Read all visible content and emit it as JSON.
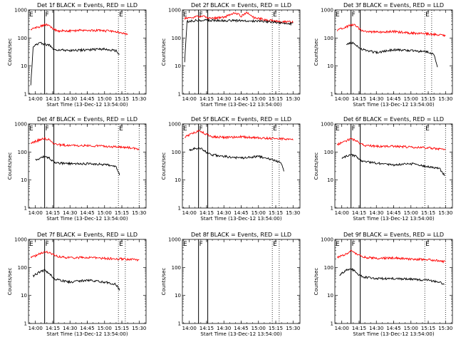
{
  "chart_data": [
    {
      "type": "line",
      "title": "Det 1f BLACK = Events, RED = LLD",
      "xlabel": "Start Time (13-Dec-12 13:54:00)",
      "ylabel": "Counts/sec",
      "yscale": "log",
      "ylim": [
        1,
        1000
      ],
      "xlim": [
        "13:54",
        "15:36"
      ],
      "xticks": [
        "14:00",
        "14:15",
        "14:30",
        "14:45",
        "15:00",
        "15:15",
        "15:30"
      ],
      "yticks": [
        "1",
        "10",
        "100",
        "1000"
      ],
      "markers": [
        {
          "label": "E",
          "time": "13:54"
        },
        {
          "label": "F",
          "time": "14:08"
        },
        {
          "label": "E",
          "time": "15:12"
        }
      ],
      "solid_lines": [
        "14:08",
        "14:16"
      ],
      "dotted_lines": [
        "15:12",
        "15:18"
      ],
      "series": [
        {
          "color": "#ff0000",
          "x": [
            "13:56",
            "14:00",
            "14:05",
            "14:08",
            "14:12",
            "14:16",
            "14:20",
            "14:30",
            "14:45",
            "15:00",
            "15:10",
            "15:15",
            "15:20"
          ],
          "values": [
            200,
            230,
            270,
            300,
            280,
            200,
            180,
            180,
            190,
            180,
            170,
            150,
            140
          ]
        },
        {
          "color": "#000000",
          "x": [
            "13:56",
            "13:58",
            "14:00",
            "14:05",
            "14:08",
            "14:12",
            "14:16",
            "14:20",
            "14:30",
            "14:45",
            "15:00",
            "15:10",
            "15:13"
          ],
          "values": [
            2,
            50,
            60,
            65,
            60,
            55,
            40,
            38,
            35,
            38,
            40,
            35,
            25
          ]
        }
      ]
    },
    {
      "type": "line",
      "title": "Det 2f BLACK = Events, RED = LLD",
      "xlabel": "Start Time (13-Dec-12 13:54:00)",
      "ylabel": "Counts/sec",
      "yscale": "log",
      "ylim": [
        1,
        1000
      ],
      "xlim": [
        "13:54",
        "15:36"
      ],
      "xticks": [
        "14:00",
        "14:15",
        "14:30",
        "14:45",
        "15:00",
        "15:15",
        "15:30"
      ],
      "yticks": [
        "1",
        "10",
        "100",
        "1000"
      ],
      "markers": [
        {
          "label": "E",
          "time": "13:54"
        },
        {
          "label": "F",
          "time": "14:08"
        },
        {
          "label": "E",
          "time": "15:12"
        }
      ],
      "solid_lines": [
        "14:08",
        "14:16"
      ],
      "dotted_lines": [
        "15:12",
        "15:18"
      ],
      "series": [
        {
          "color": "#ff0000",
          "x": [
            "13:56",
            "14:05",
            "14:10",
            "14:20",
            "14:30",
            "14:40",
            "14:45",
            "14:50",
            "14:55",
            "15:00",
            "15:10",
            "15:20",
            "15:30"
          ],
          "values": [
            500,
            560,
            600,
            500,
            550,
            800,
            600,
            800,
            550,
            500,
            420,
            380,
            380
          ]
        },
        {
          "color": "#000000",
          "x": [
            "13:56",
            "13:58",
            "14:00",
            "14:05",
            "14:10",
            "14:20",
            "14:30",
            "14:45",
            "15:00",
            "15:10",
            "15:20",
            "15:30"
          ],
          "values": [
            15,
            380,
            400,
            420,
            430,
            430,
            420,
            420,
            400,
            380,
            340,
            320
          ]
        }
      ]
    },
    {
      "type": "line",
      "title": "Det 3f BLACK = Events, RED = LLD",
      "xlabel": "Start Time (13-Dec-12 13:54:00)",
      "ylabel": "Counts/sec",
      "yscale": "log",
      "ylim": [
        1,
        1000
      ],
      "xlim": [
        "13:54",
        "15:36"
      ],
      "xticks": [
        "14:00",
        "14:15",
        "14:30",
        "14:45",
        "15:00",
        "15:15",
        "15:30"
      ],
      "yticks": [
        "1",
        "10",
        "100",
        "1000"
      ],
      "markers": [
        {
          "label": "E",
          "time": "13:54"
        },
        {
          "label": "F",
          "time": "14:08"
        },
        {
          "label": "E",
          "time": "15:12"
        }
      ],
      "solid_lines": [
        "14:08",
        "14:16"
      ],
      "dotted_lines": [
        "15:12",
        "15:18"
      ],
      "series": [
        {
          "color": "#ff0000",
          "x": [
            "13:56",
            "14:00",
            "14:05",
            "14:08",
            "14:12",
            "14:16",
            "14:20",
            "14:30",
            "14:45",
            "15:00",
            "15:15",
            "15:25",
            "15:30"
          ],
          "values": [
            180,
            220,
            260,
            300,
            280,
            200,
            170,
            160,
            170,
            150,
            140,
            130,
            120
          ]
        },
        {
          "color": "#000000",
          "x": [
            "14:04",
            "14:08",
            "14:12",
            "14:16",
            "14:20",
            "14:30",
            "14:45",
            "15:00",
            "15:15",
            "15:20",
            "15:23"
          ],
          "values": [
            60,
            70,
            60,
            40,
            38,
            30,
            38,
            35,
            32,
            25,
            10
          ]
        }
      ]
    },
    {
      "type": "line",
      "title": "Det 4f BLACK = Events, RED = LLD",
      "xlabel": "Start Time (13-Dec-12 13:54:00)",
      "ylabel": "Counts/sec",
      "yscale": "log",
      "ylim": [
        1,
        1000
      ],
      "xlim": [
        "13:54",
        "15:36"
      ],
      "xticks": [
        "14:00",
        "14:15",
        "14:30",
        "14:45",
        "15:00",
        "15:15",
        "15:30"
      ],
      "yticks": [
        "1",
        "10",
        "100",
        "1000"
      ],
      "markers": [
        {
          "label": "E",
          "time": "13:54"
        },
        {
          "label": "F",
          "time": "14:08"
        },
        {
          "label": "E",
          "time": "15:12"
        }
      ],
      "solid_lines": [
        "14:08",
        "14:16"
      ],
      "dotted_lines": [
        "15:12",
        "15:30"
      ],
      "series": [
        {
          "color": "#ff0000",
          "x": [
            "13:56",
            "14:00",
            "14:05",
            "14:08",
            "14:12",
            "14:16",
            "14:20",
            "14:30",
            "14:45",
            "15:00",
            "15:15",
            "15:25",
            "15:30"
          ],
          "values": [
            200,
            240,
            280,
            300,
            270,
            200,
            180,
            170,
            170,
            160,
            150,
            140,
            120
          ]
        },
        {
          "color": "#000000",
          "x": [
            "14:00",
            "14:04",
            "14:08",
            "14:12",
            "14:16",
            "14:20",
            "14:30",
            "14:45",
            "15:00",
            "15:10",
            "15:13"
          ],
          "values": [
            50,
            60,
            70,
            60,
            45,
            40,
            38,
            38,
            36,
            30,
            15
          ]
        }
      ]
    },
    {
      "type": "line",
      "title": "Det 5f BLACK = Events, RED = LLD",
      "xlabel": "Start Time (13-Dec-12 13:54:00)",
      "ylabel": "Counts/sec",
      "yscale": "log",
      "ylim": [
        1,
        1000
      ],
      "xlim": [
        "13:54",
        "15:36"
      ],
      "xticks": [
        "14:00",
        "14:15",
        "14:30",
        "14:45",
        "15:00",
        "15:15",
        "15:30"
      ],
      "yticks": [
        "1",
        "10",
        "100",
        "1000"
      ],
      "markers": [
        {
          "label": "E",
          "time": "13:54"
        },
        {
          "label": "F",
          "time": "14:08"
        },
        {
          "label": "E",
          "time": "15:12"
        }
      ],
      "solid_lines": [
        "14:08",
        "14:16"
      ],
      "dotted_lines": [
        "15:12",
        "15:18"
      ],
      "series": [
        {
          "color": "#ff0000",
          "x": [
            "13:56",
            "14:00",
            "14:05",
            "14:08",
            "14:12",
            "14:16",
            "14:20",
            "14:30",
            "14:45",
            "15:00",
            "15:15",
            "15:30"
          ],
          "values": [
            350,
            400,
            500,
            600,
            500,
            400,
            350,
            330,
            350,
            320,
            300,
            280
          ]
        },
        {
          "color": "#000000",
          "x": [
            "14:00",
            "14:04",
            "14:08",
            "14:12",
            "14:16",
            "14:20",
            "14:30",
            "14:45",
            "15:00",
            "15:15",
            "15:20",
            "15:22"
          ],
          "values": [
            120,
            130,
            140,
            120,
            90,
            80,
            70,
            60,
            70,
            50,
            40,
            20
          ]
        }
      ]
    },
    {
      "type": "line",
      "title": "Det 6f BLACK = Events, RED = LLD",
      "xlabel": "Start Time (13-Dec-12 13:54:00)",
      "ylabel": "Counts/sec",
      "yscale": "log",
      "ylim": [
        1,
        1000
      ],
      "xlim": [
        "13:54",
        "15:36"
      ],
      "xticks": [
        "14:00",
        "14:15",
        "14:30",
        "14:45",
        "15:00",
        "15:15",
        "15:30"
      ],
      "yticks": [
        "1",
        "10",
        "100",
        "1000"
      ],
      "markers": [
        {
          "label": "E",
          "time": "13:54"
        },
        {
          "label": "F",
          "time": "14:08"
        },
        {
          "label": "E",
          "time": "15:12"
        }
      ],
      "solid_lines": [
        "14:08",
        "14:16"
      ],
      "dotted_lines": [
        "15:12",
        "15:30"
      ],
      "series": [
        {
          "color": "#ff0000",
          "x": [
            "13:56",
            "14:00",
            "14:05",
            "14:08",
            "14:12",
            "14:16",
            "14:20",
            "14:30",
            "14:45",
            "15:00",
            "15:15",
            "15:25",
            "15:30"
          ],
          "values": [
            180,
            220,
            260,
            300,
            260,
            200,
            170,
            160,
            160,
            150,
            140,
            130,
            120
          ]
        },
        {
          "color": "#000000",
          "x": [
            "14:00",
            "14:04",
            "14:08",
            "14:12",
            "14:16",
            "14:20",
            "14:30",
            "14:45",
            "15:00",
            "15:15",
            "15:25",
            "15:29"
          ],
          "values": [
            60,
            70,
            80,
            70,
            50,
            45,
            40,
            35,
            38,
            30,
            25,
            15
          ]
        }
      ]
    },
    {
      "type": "line",
      "title": "Det 7f BLACK = Events, RED = LLD",
      "xlabel": "Start Time (13-Dec-12 13:54:00)",
      "ylabel": "Counts/sec",
      "yscale": "log",
      "ylim": [
        1,
        1000
      ],
      "xlim": [
        "13:54",
        "15:36"
      ],
      "xticks": [
        "14:00",
        "14:15",
        "14:30",
        "14:45",
        "15:00",
        "15:15",
        "15:30"
      ],
      "yticks": [
        "1",
        "10",
        "100",
        "1000"
      ],
      "markers": [
        {
          "label": "E",
          "time": "13:54"
        },
        {
          "label": "F",
          "time": "14:08"
        },
        {
          "label": "E",
          "time": "15:12"
        }
      ],
      "solid_lines": [
        "14:08",
        "14:16"
      ],
      "dotted_lines": [
        "15:12",
        "15:18"
      ],
      "series": [
        {
          "color": "#ff0000",
          "x": [
            "13:56",
            "14:00",
            "14:05",
            "14:08",
            "14:12",
            "14:16",
            "14:20",
            "14:30",
            "14:45",
            "15:00",
            "15:15",
            "15:25",
            "15:30"
          ],
          "values": [
            220,
            260,
            320,
            380,
            330,
            280,
            240,
            220,
            230,
            210,
            200,
            190,
            180
          ]
        },
        {
          "color": "#000000",
          "x": [
            "13:58",
            "14:00",
            "14:04",
            "14:08",
            "14:12",
            "14:16",
            "14:20",
            "14:30",
            "14:45",
            "15:00",
            "15:10",
            "15:13"
          ],
          "values": [
            50,
            55,
            70,
            80,
            60,
            40,
            35,
            30,
            35,
            30,
            25,
            15
          ]
        }
      ]
    },
    {
      "type": "line",
      "title": "Det 8f BLACK = Events, RED = LLD",
      "xlabel": "Start Time (13-Dec-12 13:54:00)",
      "ylabel": "Counts/sec",
      "yscale": "log",
      "ylim": [
        1,
        1000
      ],
      "xlim": [
        "13:54",
        "15:36"
      ],
      "xticks": [
        "14:00",
        "14:15",
        "14:30",
        "14:45",
        "15:00",
        "15:15",
        "15:30"
      ],
      "yticks": [
        "1",
        "10",
        "100",
        "1000"
      ],
      "markers": [
        {
          "label": "E",
          "time": "13:54"
        },
        {
          "label": "F",
          "time": "14:08"
        },
        {
          "label": "E",
          "time": "15:12"
        }
      ],
      "solid_lines": [
        "14:08",
        "14:16"
      ],
      "dotted_lines": [
        "15:12",
        "15:18"
      ],
      "series": []
    },
    {
      "type": "line",
      "title": "Det 9f BLACK = Events, RED = LLD",
      "xlabel": "Start Time (13-Dec-12 13:54:00)",
      "ylabel": "Counts/sec",
      "yscale": "log",
      "ylim": [
        1,
        1000
      ],
      "xlim": [
        "13:54",
        "15:36"
      ],
      "xticks": [
        "14:00",
        "14:15",
        "14:30",
        "14:45",
        "15:00",
        "15:15",
        "15:30"
      ],
      "yticks": [
        "1",
        "10",
        "100",
        "1000"
      ],
      "markers": [
        {
          "label": "E",
          "time": "13:54"
        },
        {
          "label": "F",
          "time": "14:08"
        },
        {
          "label": "E",
          "time": "15:12"
        }
      ],
      "solid_lines": [
        "14:08",
        "14:16"
      ],
      "dotted_lines": [
        "15:12",
        "15:30"
      ],
      "series": [
        {
          "color": "#ff0000",
          "x": [
            "13:56",
            "14:00",
            "14:05",
            "14:08",
            "14:12",
            "14:16",
            "14:20",
            "14:30",
            "14:45",
            "15:00",
            "15:15",
            "15:25",
            "15:30"
          ],
          "values": [
            220,
            260,
            320,
            380,
            320,
            260,
            230,
            210,
            220,
            200,
            190,
            170,
            160
          ]
        },
        {
          "color": "#000000",
          "x": [
            "13:58",
            "14:00",
            "14:04",
            "14:08",
            "14:12",
            "14:16",
            "14:20",
            "14:30",
            "14:45",
            "15:00",
            "15:15",
            "15:25",
            "15:29"
          ],
          "values": [
            50,
            60,
            80,
            90,
            70,
            50,
            45,
            40,
            40,
            38,
            35,
            30,
            25
          ]
        }
      ]
    }
  ]
}
